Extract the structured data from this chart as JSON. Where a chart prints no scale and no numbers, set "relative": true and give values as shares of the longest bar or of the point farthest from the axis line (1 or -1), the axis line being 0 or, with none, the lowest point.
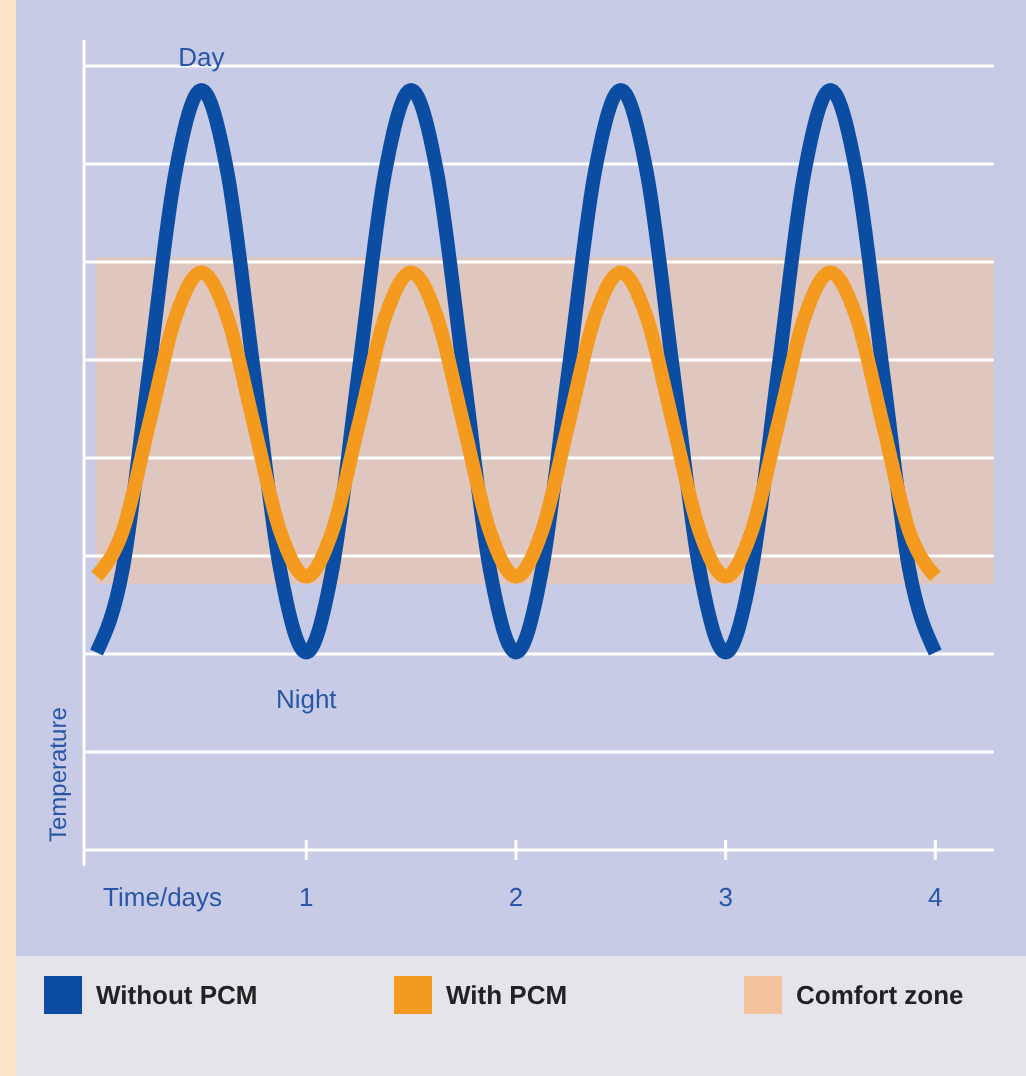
{
  "chart_data": {
    "type": "line",
    "relative": true,
    "xlabel": "Time/days",
    "ylabel": "Temperature",
    "x": [
      0,
      0.125,
      0.25,
      0.375,
      0.5,
      0.625,
      0.75,
      0.875,
      1,
      1.125,
      1.25,
      1.375,
      1.5,
      1.625,
      1.75,
      1.875,
      2,
      2.125,
      2.25,
      2.375,
      2.5,
      2.625,
      2.75,
      2.875,
      3,
      3.125,
      3.25,
      3.375,
      3.5,
      3.625,
      3.75,
      3.875,
      4
    ],
    "series": [
      {
        "name": "Without PCM",
        "color": "#0a4da2",
        "values": [
          0.26,
          0.37,
          0.63,
          0.89,
          1,
          0.89,
          0.63,
          0.37,
          0.26,
          0.37,
          0.63,
          0.89,
          1,
          0.89,
          0.63,
          0.37,
          0.26,
          0.37,
          0.63,
          0.89,
          1,
          0.89,
          0.63,
          0.37,
          0.26,
          0.37,
          0.63,
          0.89,
          1,
          0.89,
          0.63,
          0.37,
          0.26
        ]
      },
      {
        "name": "With PCM",
        "color": "#f39a1f",
        "values": [
          0.36,
          0.42,
          0.56,
          0.7,
          0.76,
          0.7,
          0.56,
          0.42,
          0.36,
          0.42,
          0.56,
          0.7,
          0.76,
          0.7,
          0.56,
          0.42,
          0.36,
          0.42,
          0.56,
          0.7,
          0.76,
          0.7,
          0.56,
          0.42,
          0.36,
          0.42,
          0.56,
          0.7,
          0.76,
          0.7,
          0.56,
          0.42,
          0.36
        ]
      }
    ],
    "xlim": [
      -0.06,
      4.28
    ],
    "xticks": [
      1,
      2,
      3,
      4
    ],
    "bands": [
      {
        "axis": "y",
        "from": 0.35,
        "to": 0.78,
        "label": "Comfort zone",
        "color": "#f2c39c"
      }
    ],
    "annotations": [
      {
        "text": "Day",
        "x": 0.5,
        "y": 1
      },
      {
        "text": "Night",
        "x": 1,
        "y": 0.26
      }
    ],
    "grid": true,
    "legend": "bottom",
    "marker": "none",
    "line_style": "solid"
  }
}
